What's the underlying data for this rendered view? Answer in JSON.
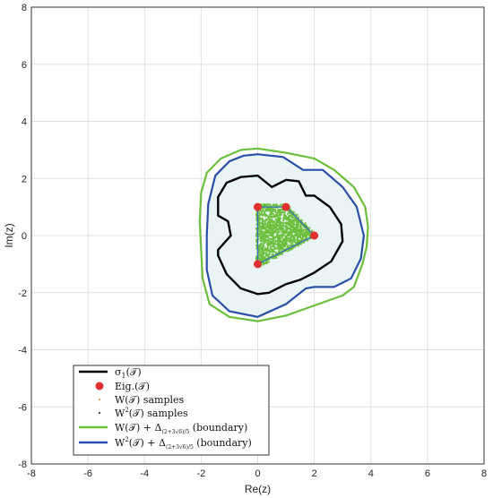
{
  "chart_data": {
    "type": "scatter",
    "xlabel": "Re(z)",
    "ylabel": "Im(z)",
    "xlim": [
      -8,
      8
    ],
    "ylim": [
      -8,
      8
    ],
    "xticks": [
      -8,
      -6,
      -4,
      -2,
      0,
      2,
      4,
      6,
      8
    ],
    "yticks": [
      -8,
      -6,
      -4,
      -2,
      0,
      2,
      4,
      6,
      8
    ],
    "grid": true,
    "legend_position": "bottom-left",
    "eigenvalues": [
      [
        0,
        1
      ],
      [
        1,
        1
      ],
      [
        2,
        0
      ],
      [
        0,
        -1
      ]
    ],
    "triangle": [
      [
        0,
        1
      ],
      [
        1,
        1
      ],
      [
        2,
        0
      ],
      [
        0,
        -1
      ]
    ],
    "series": [
      {
        "name": "σ₁(𝒯)",
        "color": "#000000",
        "style": "line",
        "x": [
          0.0,
          0.5,
          1.0,
          1.45,
          1.7,
          2.0,
          2.55,
          2.95,
          3.0,
          2.6,
          2.0,
          1.5,
          1.0,
          0.4,
          0.0,
          -0.6,
          -1.1,
          -1.4,
          -1.4,
          -0.95,
          -1.05,
          -1.4,
          -1.4,
          -1.1,
          -0.6,
          0.0
        ],
        "y": [
          2.1,
          1.7,
          1.95,
          1.9,
          1.4,
          1.4,
          1.0,
          0.4,
          -0.2,
          -0.9,
          -1.3,
          -1.55,
          -1.7,
          -2.0,
          -2.05,
          -1.85,
          -1.35,
          -0.7,
          -0.5,
          0.0,
          0.5,
          0.7,
          1.35,
          1.85,
          2.05,
          2.1
        ]
      },
      {
        "name": "Eig.(𝒯)",
        "color": "#e03030",
        "style": "marker"
      },
      {
        "name": "W(𝒯) samples",
        "color": "#e08030",
        "style": "dots"
      },
      {
        "name": "W²(𝒯) samples",
        "color": "#111111",
        "style": "dots"
      },
      {
        "name": "W(𝒯) + Δ_{(2+3√6)/5} (boundary)",
        "color": "#6cbf3c",
        "style": "line",
        "x": [
          0.0,
          1.0,
          2.0,
          2.7,
          3.4,
          3.8,
          3.9,
          3.85,
          3.7,
          3.4,
          3.0,
          2.0,
          1.0,
          0.0,
          -1.0,
          -1.7,
          -1.95,
          -2.0,
          -2.05,
          -2.0,
          -1.8,
          -1.3,
          -0.6,
          0.0
        ],
        "y": [
          3.05,
          2.9,
          2.7,
          2.3,
          1.7,
          1.0,
          0.3,
          -0.4,
          -1.0,
          -1.8,
          -2.1,
          -2.45,
          -2.8,
          -3.0,
          -2.85,
          -2.4,
          -1.5,
          -0.5,
          0.5,
          1.5,
          2.2,
          2.7,
          3.0,
          3.05
        ]
      },
      {
        "name": "W²(𝒯) + Δ_{(2+3√6)/5} (boundary)",
        "color": "#2a4fa8",
        "style": "line",
        "x": [
          0.0,
          0.9,
          1.6,
          2.3,
          3.0,
          3.5,
          3.75,
          3.65,
          3.3,
          2.7,
          2.0,
          1.7,
          1.0,
          0.0,
          -1.0,
          -1.6,
          -1.8,
          -1.8,
          -1.75,
          -1.5,
          -1.0,
          -0.5,
          0.0
        ],
        "y": [
          2.85,
          2.75,
          2.3,
          2.3,
          1.7,
          1.0,
          0.0,
          -0.8,
          -1.5,
          -1.8,
          -1.8,
          -1.85,
          -2.4,
          -2.85,
          -2.65,
          -2.1,
          -1.2,
          0.0,
          1.1,
          2.1,
          2.6,
          2.8,
          2.85
        ]
      }
    ]
  },
  "legend": {
    "items": [
      {
        "main": "σ",
        "sub": "1",
        "tail": "(𝒯)"
      },
      {
        "main": "Eig.(𝒯)",
        "sub": "",
        "tail": ""
      },
      {
        "main": "W(𝒯) samples",
        "sub": "",
        "tail": ""
      },
      {
        "main": "W",
        "sup": "2",
        "tail": "(𝒯) samples"
      },
      {
        "main": "W(𝒯) + Δ",
        "sub": "(2+3√6)/5",
        "tail": " (boundary)"
      },
      {
        "main": "W",
        "sup": "2",
        "tail": "(𝒯) + Δ",
        "sub2": "(2+3√6)/5",
        "tail2": " (boundary)"
      }
    ]
  },
  "colors": {
    "fill": "#eaf4f4",
    "samples": "#6cbf3c",
    "grid": "#e0e0e0",
    "axis": "#333333"
  }
}
